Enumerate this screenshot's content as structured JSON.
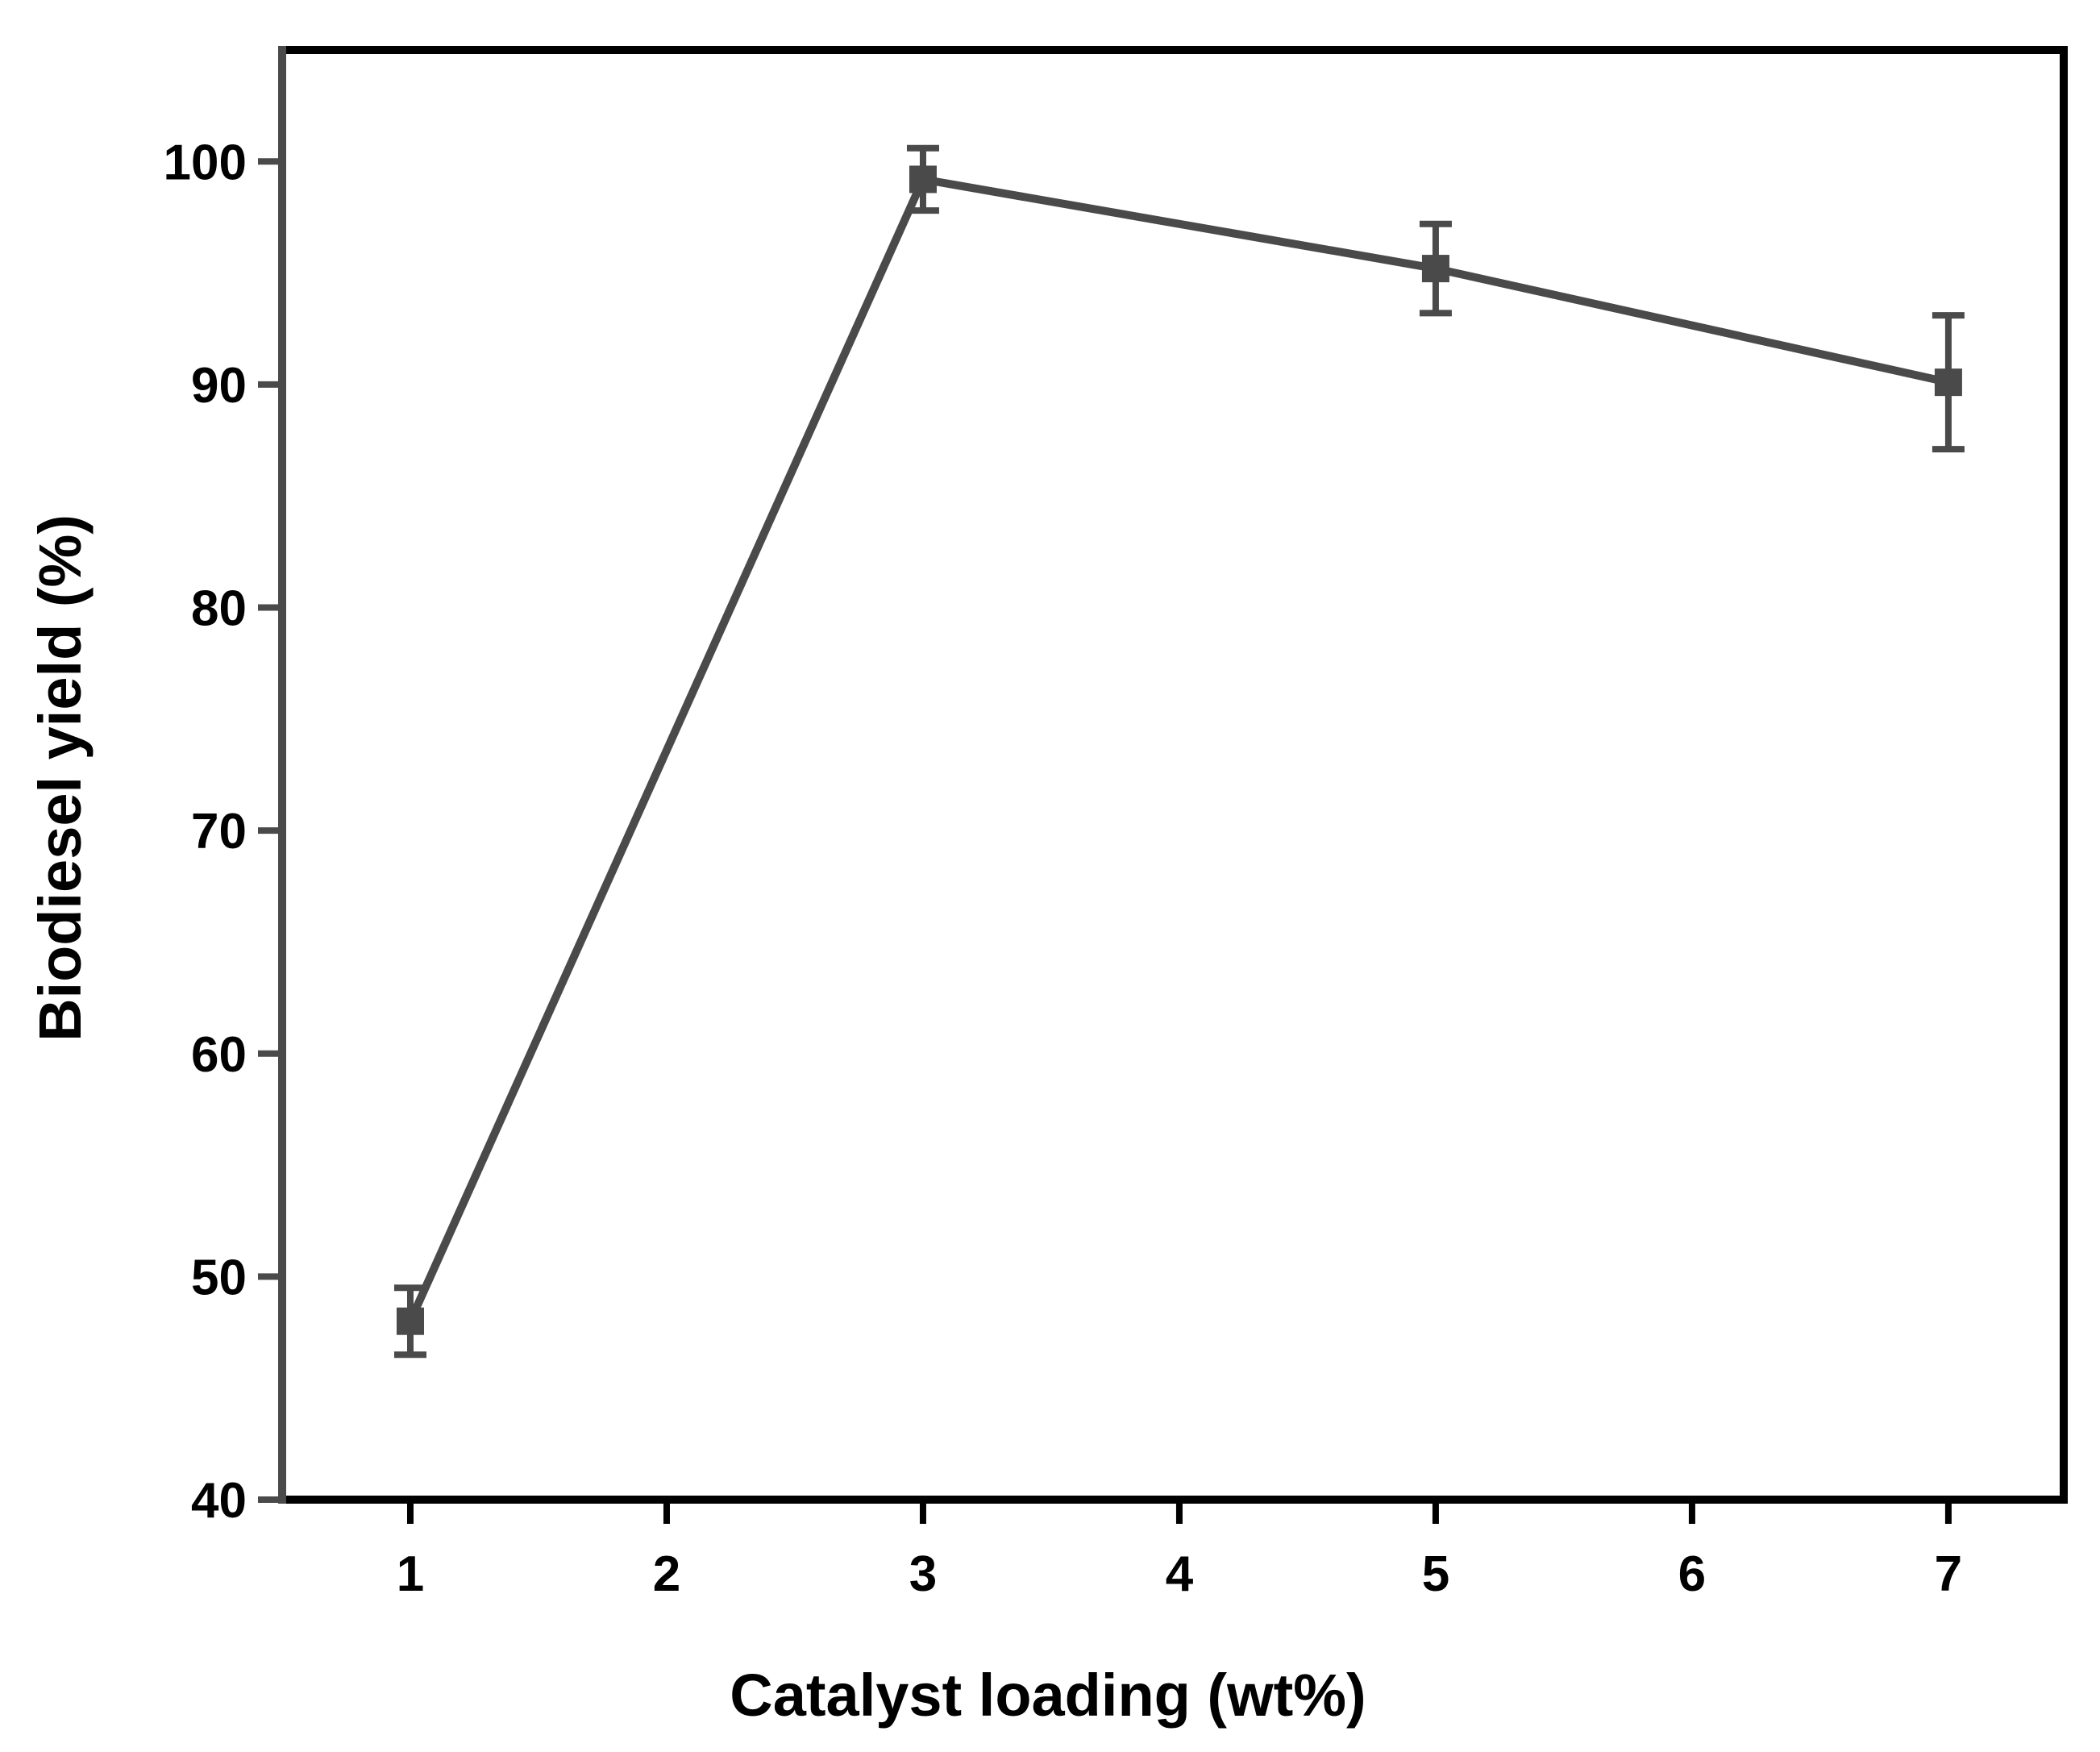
{
  "chart_data": {
    "type": "line",
    "title": "",
    "xlabel": "Catalyst loading (wt%)",
    "ylabel": "Biodiesel yield (%)",
    "xlim": [
      0.5,
      7.45
    ],
    "ylim": [
      40,
      105
    ],
    "xticks": [
      1,
      2,
      3,
      4,
      5,
      6,
      7
    ],
    "yticks": [
      40,
      50,
      60,
      70,
      80,
      90,
      100
    ],
    "grid": false,
    "legend": "none",
    "series": [
      {
        "x": [
          1,
          3,
          5,
          7
        ],
        "y": [
          48.0,
          99.2,
          95.2,
          90.1
        ],
        "error": [
          1.5,
          1.4,
          2.0,
          3.0
        ],
        "marker": "square",
        "color": "#4a4a4a"
      }
    ],
    "frame_color": "#000000",
    "axis_color": "#4a4a4a"
  }
}
